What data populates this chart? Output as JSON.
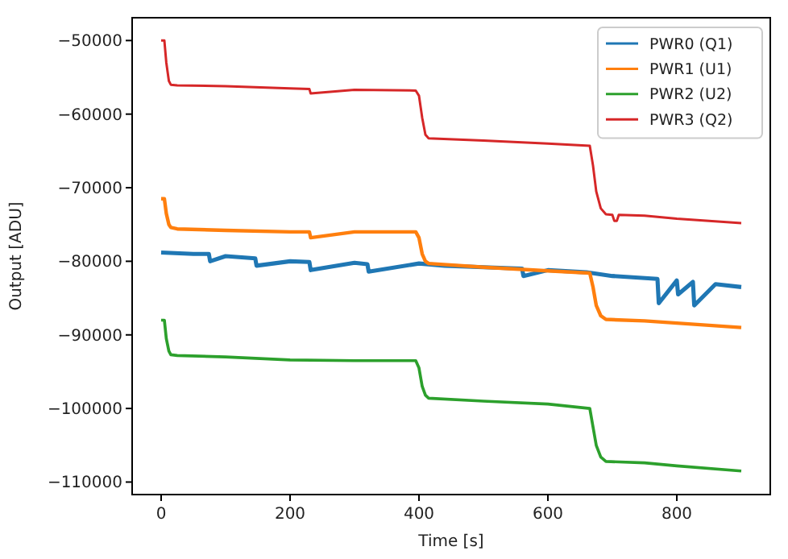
{
  "chart_data": {
    "type": "line",
    "xlabel": "Time [s]",
    "ylabel": "Output [ADU]",
    "xlim": [
      -45,
      945
    ],
    "ylim": [
      -111700,
      -46900
    ],
    "xticks": [
      0,
      200,
      400,
      600,
      800
    ],
    "yticks": [
      -110000,
      -100000,
      -90000,
      -80000,
      -70000,
      -60000,
      -50000
    ],
    "legend": "top right",
    "grid": false,
    "series": [
      {
        "name": "PWR0 (Q1)",
        "color": "#1f77b4",
        "x": [
          0,
          50,
          74,
          76,
          100,
          146,
          148,
          200,
          230,
          232,
          300,
          320,
          322,
          400,
          440,
          500,
          560,
          562,
          600,
          660,
          700,
          770,
          772,
          800,
          802,
          825,
          827,
          860,
          900
        ],
        "values": [
          -78800,
          -79000,
          -79000,
          -80000,
          -79300,
          -79600,
          -80600,
          -80000,
          -80100,
          -81200,
          -80200,
          -80400,
          -81400,
          -80300,
          -80600,
          -80800,
          -81000,
          -82000,
          -81200,
          -81500,
          -82000,
          -82400,
          -85700,
          -82600,
          -84500,
          -82800,
          -86000,
          -83100,
          -83500
        ]
      },
      {
        "name": "PWR1 (U1)",
        "color": "#ff7f0e",
        "x": [
          0,
          5,
          8,
          12,
          15,
          25,
          100,
          200,
          230,
          232,
          300,
          395,
          400,
          405,
          410,
          415,
          500,
          600,
          665,
          670,
          675,
          682,
          690,
          750,
          800,
          900
        ],
        "values": [
          -71500,
          -71500,
          -73500,
          -75000,
          -75400,
          -75600,
          -75800,
          -76000,
          -76000,
          -76800,
          -76000,
          -76000,
          -76800,
          -79000,
          -80000,
          -80300,
          -80800,
          -81300,
          -81600,
          -83500,
          -86000,
          -87400,
          -87900,
          -88100,
          -88400,
          -89000
        ]
      },
      {
        "name": "PWR2 (U2)",
        "color": "#2ca02c",
        "x": [
          0,
          5,
          8,
          12,
          15,
          25,
          100,
          200,
          300,
          395,
          400,
          405,
          410,
          415,
          500,
          600,
          665,
          670,
          675,
          682,
          690,
          750,
          800,
          900
        ],
        "values": [
          -88000,
          -88000,
          -90500,
          -92200,
          -92700,
          -92800,
          -93000,
          -93400,
          -93500,
          -93500,
          -94500,
          -97000,
          -98200,
          -98600,
          -99000,
          -99400,
          -100000,
          -102500,
          -105000,
          -106600,
          -107200,
          -107400,
          -107800,
          -108500
        ]
      },
      {
        "name": "PWR3 (Q2)",
        "color": "#d62728",
        "x": [
          0,
          5,
          8,
          12,
          15,
          25,
          100,
          200,
          230,
          232,
          300,
          395,
          400,
          405,
          410,
          415,
          500,
          600,
          665,
          670,
          675,
          682,
          690,
          700,
          703,
          707,
          710,
          750,
          800,
          900
        ],
        "values": [
          -50000,
          -50000,
          -53000,
          -55500,
          -56000,
          -56100,
          -56200,
          -56500,
          -56600,
          -57200,
          -56700,
          -56800,
          -57500,
          -60500,
          -62800,
          -63300,
          -63600,
          -64000,
          -64300,
          -67000,
          -70500,
          -72800,
          -73600,
          -73700,
          -74500,
          -74500,
          -73700,
          -73800,
          -74200,
          -74800
        ]
      }
    ]
  }
}
